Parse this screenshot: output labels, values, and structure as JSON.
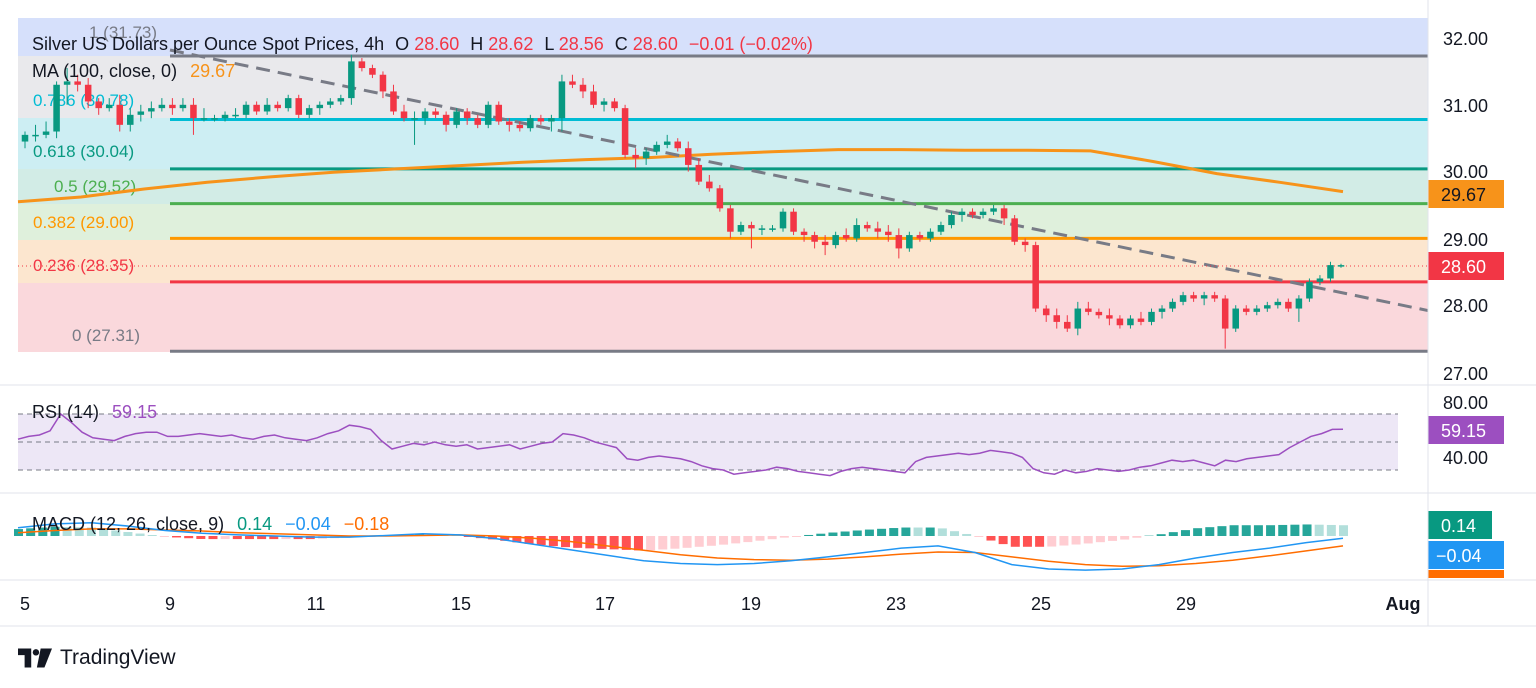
{
  "header": {
    "title": "Silver US Dollars per Ounce Spot Prices, 4h",
    "o_label": "O",
    "o": "28.60",
    "h_label": "H",
    "h": "28.62",
    "l_label": "L",
    "l": "28.56",
    "c_label": "C",
    "c": "28.60",
    "change": "−0.01 (−0.02%)"
  },
  "ma_legend": {
    "label": "MA (100, close, 0)",
    "value": "29.67"
  },
  "price_axis_labels": [
    "32.00",
    "31.00",
    "30.00",
    "29.00",
    "28.00",
    "27.00"
  ],
  "price_badges": {
    "ma": "29.67",
    "last": "28.60"
  },
  "fib_labels": {
    "l100": "1 (31.73)",
    "l786": "0.786 (30.78)",
    "l618": "0.618 (30.04)",
    "l500": "0.5 (29.52)",
    "l382": "0.382 (29.00)",
    "l236": "0.236 (28.35)",
    "l0": "0 (27.31)"
  },
  "rsi": {
    "legend_label": "RSI (14)",
    "legend_value": "59.15",
    "badge": "59.15",
    "axis_labels": [
      "80.00",
      "40.00"
    ]
  },
  "macd": {
    "legend_label": "MACD (12, 26, close, 9)",
    "v_hist": "0.14",
    "v_macd": "−0.04",
    "v_signal": "−0.18",
    "badge_hist": "0.14",
    "badge_macd": "−0.04"
  },
  "x_axis_labels": [
    "5",
    "9",
    "11",
    "15",
    "17",
    "19",
    "23",
    "25",
    "29",
    "Aug"
  ],
  "brand": {
    "name": "TradingView"
  },
  "colors": {
    "up": "#089981",
    "down": "#f23645",
    "ma": "#f7931a",
    "rsi": "#9c4fc0",
    "macd": "#2196f3",
    "signal": "#ff6d00"
  },
  "chart_data": {
    "type": "candlestick",
    "title": "Silver US Dollars per Ounce Spot Prices, 4h",
    "timeframe": "4h",
    "ylim": [
      26.8,
      32.3
    ],
    "x_ticks": [
      "5",
      "9",
      "11",
      "15",
      "17",
      "19",
      "23",
      "25",
      "29",
      "Aug"
    ],
    "fibonacci": [
      {
        "level": 1,
        "price": 31.73,
        "color": "#787b86"
      },
      {
        "level": 0.786,
        "price": 30.78,
        "color": "#00bcd4"
      },
      {
        "level": 0.618,
        "price": 30.04,
        "color": "#089981"
      },
      {
        "level": 0.5,
        "price": 29.52,
        "color": "#4caf50"
      },
      {
        "level": 0.382,
        "price": 29.0,
        "color": "#ff9800"
      },
      {
        "level": 0.236,
        "price": 28.35,
        "color": "#f23645"
      },
      {
        "level": 0,
        "price": 27.31,
        "color": "#787b86"
      }
    ],
    "trendline": {
      "from_bar": 0,
      "from_price": 31.8,
      "to_bar": 1.33,
      "to_price": 27.9
    },
    "ma100": [
      29.55,
      29.62,
      29.74,
      29.84,
      29.92,
      29.99,
      30.04,
      30.09,
      30.14,
      30.18,
      30.21,
      30.26,
      30.3,
      30.33,
      30.33,
      30.32,
      30.32,
      30.31,
      30.15,
      29.97,
      29.84,
      29.7
    ],
    "ohlc": [
      [
        30.45,
        30.6,
        30.35,
        30.55
      ],
      [
        30.55,
        30.7,
        30.45,
        30.55
      ],
      [
        30.55,
        30.75,
        30.5,
        30.6
      ],
      [
        30.6,
        31.35,
        30.5,
        31.3
      ],
      [
        31.3,
        31.55,
        31.0,
        31.35
      ],
      [
        31.35,
        31.45,
        31.2,
        31.3
      ],
      [
        31.3,
        31.4,
        30.95,
        31.05
      ],
      [
        31.05,
        31.1,
        30.85,
        30.95
      ],
      [
        30.95,
        31.1,
        30.9,
        31.0
      ],
      [
        31.0,
        31.15,
        30.6,
        30.7
      ],
      [
        30.7,
        30.95,
        30.6,
        30.85
      ],
      [
        30.85,
        31.0,
        30.75,
        30.9
      ],
      [
        30.9,
        31.05,
        30.8,
        30.95
      ],
      [
        30.95,
        31.1,
        30.9,
        31.0
      ],
      [
        31.0,
        31.1,
        30.85,
        30.95
      ],
      [
        30.95,
        31.1,
        30.9,
        31.0
      ],
      [
        31.0,
        31.1,
        30.55,
        30.8
      ],
      [
        30.8,
        30.95,
        30.75,
        30.8
      ],
      [
        30.8,
        30.85,
        30.75,
        30.8
      ],
      [
        30.8,
        30.9,
        30.75,
        30.85
      ],
      [
        30.85,
        30.95,
        30.8,
        30.85
      ],
      [
        30.85,
        31.05,
        30.8,
        31.0
      ],
      [
        31.0,
        31.05,
        30.85,
        30.9
      ],
      [
        30.9,
        31.1,
        30.85,
        31.0
      ],
      [
        31.0,
        31.05,
        30.9,
        30.95
      ],
      [
        30.95,
        31.15,
        30.9,
        31.1
      ],
      [
        31.1,
        31.15,
        30.8,
        30.85
      ],
      [
        30.85,
        31.0,
        30.8,
        30.95
      ],
      [
        30.95,
        31.05,
        30.85,
        31.0
      ],
      [
        31.0,
        31.1,
        30.95,
        31.05
      ],
      [
        31.05,
        31.15,
        31.0,
        31.1
      ],
      [
        31.1,
        31.75,
        31.0,
        31.65
      ],
      [
        31.65,
        31.7,
        31.5,
        31.55
      ],
      [
        31.55,
        31.6,
        31.4,
        31.45
      ],
      [
        31.45,
        31.5,
        31.1,
        31.2
      ],
      [
        31.2,
        31.3,
        30.85,
        30.9
      ],
      [
        30.9,
        31.0,
        30.75,
        30.8
      ],
      [
        30.8,
        30.9,
        30.4,
        30.8
      ],
      [
        30.8,
        30.95,
        30.7,
        30.9
      ],
      [
        30.9,
        30.95,
        30.8,
        30.85
      ],
      [
        30.85,
        30.9,
        30.6,
        30.7
      ],
      [
        30.7,
        30.95,
        30.65,
        30.9
      ],
      [
        30.9,
        30.95,
        30.7,
        30.8
      ],
      [
        30.8,
        30.85,
        30.65,
        30.7
      ],
      [
        30.7,
        31.05,
        30.65,
        31.0
      ],
      [
        31.0,
        31.05,
        30.7,
        30.75
      ],
      [
        30.75,
        30.8,
        30.6,
        30.7
      ],
      [
        30.7,
        30.75,
        30.6,
        30.65
      ],
      [
        30.65,
        30.85,
        30.6,
        30.8
      ],
      [
        30.8,
        30.85,
        30.7,
        30.75
      ],
      [
        30.75,
        30.85,
        30.6,
        30.8
      ],
      [
        30.8,
        31.45,
        30.6,
        31.35
      ],
      [
        31.35,
        31.45,
        31.25,
        31.3
      ],
      [
        31.3,
        31.4,
        31.1,
        31.2
      ],
      [
        31.2,
        31.3,
        30.95,
        31.0
      ],
      [
        31.0,
        31.1,
        30.9,
        31.05
      ],
      [
        31.05,
        31.1,
        30.9,
        30.95
      ],
      [
        30.95,
        31.0,
        30.2,
        30.25
      ],
      [
        30.25,
        30.35,
        30.05,
        30.2
      ],
      [
        30.2,
        30.35,
        30.1,
        30.3
      ],
      [
        30.3,
        30.45,
        30.25,
        30.4
      ],
      [
        30.4,
        30.55,
        30.35,
        30.45
      ],
      [
        30.45,
        30.5,
        30.3,
        30.35
      ],
      [
        30.35,
        30.45,
        30.0,
        30.1
      ],
      [
        30.1,
        30.2,
        29.8,
        29.85
      ],
      [
        29.85,
        29.95,
        29.7,
        29.75
      ],
      [
        29.75,
        29.8,
        29.4,
        29.45
      ],
      [
        29.45,
        29.5,
        29.0,
        29.1
      ],
      [
        29.1,
        29.25,
        29.05,
        29.2
      ],
      [
        29.2,
        29.25,
        28.85,
        29.15
      ],
      [
        29.15,
        29.2,
        29.05,
        29.15
      ],
      [
        29.15,
        29.2,
        29.1,
        29.15
      ],
      [
        29.15,
        29.45,
        29.1,
        29.4
      ],
      [
        29.4,
        29.45,
        29.05,
        29.1
      ],
      [
        29.1,
        29.15,
        28.95,
        29.05
      ],
      [
        29.05,
        29.1,
        28.85,
        28.95
      ],
      [
        28.95,
        29.05,
        28.75,
        28.9
      ],
      [
        28.9,
        29.1,
        28.85,
        29.05
      ],
      [
        29.05,
        29.15,
        28.95,
        29.0
      ],
      [
        29.0,
        29.3,
        28.95,
        29.2
      ],
      [
        29.2,
        29.25,
        29.1,
        29.15
      ],
      [
        29.15,
        29.25,
        29.0,
        29.1
      ],
      [
        29.1,
        29.2,
        28.95,
        29.05
      ],
      [
        29.05,
        29.15,
        28.7,
        28.85
      ],
      [
        28.85,
        29.1,
        28.8,
        29.05
      ],
      [
        29.05,
        29.1,
        28.95,
        29.0
      ],
      [
        29.0,
        29.15,
        28.95,
        29.1
      ],
      [
        29.1,
        29.25,
        29.05,
        29.2
      ],
      [
        29.2,
        29.4,
        29.15,
        29.35
      ],
      [
        29.35,
        29.45,
        29.25,
        29.4
      ],
      [
        29.4,
        29.45,
        29.3,
        29.35
      ],
      [
        29.35,
        29.45,
        29.3,
        29.4
      ],
      [
        29.4,
        29.5,
        29.35,
        29.45
      ],
      [
        29.45,
        29.5,
        29.2,
        29.3
      ],
      [
        29.3,
        29.35,
        28.9,
        28.95
      ],
      [
        28.95,
        29.0,
        28.8,
        28.9
      ],
      [
        28.9,
        28.95,
        27.9,
        27.95
      ],
      [
        27.95,
        28.0,
        27.75,
        27.85
      ],
      [
        27.85,
        27.95,
        27.65,
        27.75
      ],
      [
        27.75,
        27.85,
        27.6,
        27.65
      ],
      [
        27.65,
        28.05,
        27.55,
        27.95
      ],
      [
        27.95,
        28.05,
        27.85,
        27.9
      ],
      [
        27.9,
        27.95,
        27.8,
        27.85
      ],
      [
        27.85,
        27.95,
        27.7,
        27.8
      ],
      [
        27.8,
        27.85,
        27.65,
        27.7
      ],
      [
        27.7,
        27.85,
        27.65,
        27.8
      ],
      [
        27.8,
        27.9,
        27.7,
        27.75
      ],
      [
        27.75,
        27.95,
        27.7,
        27.9
      ],
      [
        27.9,
        28.0,
        27.8,
        27.95
      ],
      [
        27.95,
        28.1,
        27.9,
        28.05
      ],
      [
        28.05,
        28.2,
        28.0,
        28.15
      ],
      [
        28.15,
        28.2,
        28.05,
        28.1
      ],
      [
        28.1,
        28.2,
        28.0,
        28.15
      ],
      [
        28.15,
        28.2,
        28.05,
        28.1
      ],
      [
        28.1,
        28.15,
        27.35,
        27.65
      ],
      [
        27.65,
        28.0,
        27.6,
        27.95
      ],
      [
        27.95,
        28.0,
        27.85,
        27.9
      ],
      [
        27.9,
        28.0,
        27.85,
        27.95
      ],
      [
        27.95,
        28.05,
        27.9,
        28.0
      ],
      [
        28.0,
        28.1,
        27.95,
        28.05
      ],
      [
        28.05,
        28.1,
        27.9,
        27.95
      ],
      [
        27.95,
        28.15,
        27.75,
        28.1
      ],
      [
        28.1,
        28.4,
        28.05,
        28.35
      ],
      [
        28.35,
        28.45,
        28.3,
        28.4
      ],
      [
        28.4,
        28.65,
        28.35,
        28.6
      ],
      [
        28.6,
        28.62,
        28.56,
        28.6
      ]
    ],
    "rsi_values": [
      52,
      54,
      55,
      58,
      70,
      64,
      57,
      53,
      52,
      51,
      54,
      56,
      57,
      57,
      54,
      54,
      55,
      56,
      55,
      54,
      55,
      53,
      52,
      54,
      55,
      53,
      52,
      51,
      53,
      56,
      58,
      62,
      61,
      59,
      51,
      45,
      47,
      49,
      48,
      50,
      48,
      47,
      48,
      45,
      46,
      47,
      48,
      45,
      47,
      49,
      50,
      56,
      55,
      53,
      50,
      48,
      46,
      38,
      37,
      39,
      40,
      39,
      38,
      36,
      33,
      31,
      30,
      27,
      28,
      29,
      30,
      32,
      31,
      29,
      28,
      27,
      26,
      29,
      31,
      32,
      31,
      30,
      29,
      28,
      36,
      39,
      40,
      41,
      42,
      41,
      42,
      44,
      43,
      42,
      39,
      31,
      28,
      27,
      30,
      28,
      29,
      31,
      30,
      29,
      30,
      32,
      33,
      35,
      37,
      36,
      37,
      35,
      33,
      37,
      36,
      38,
      39,
      40,
      41,
      46,
      50,
      54,
      56,
      59,
      59.15
    ],
    "macd": {
      "hist": 0.14,
      "macd": -0.04,
      "signal": -0.18,
      "macd_line": [
        0.15,
        0.22,
        0.24,
        0.18,
        0.1,
        0.05,
        0.02,
        0.0,
        -0.02,
        -0.02,
        0.01,
        0.04,
        0.02,
        -0.05,
        -0.15,
        -0.25,
        -0.35,
        -0.45,
        -0.5,
        -0.52,
        -0.5,
        -0.45,
        -0.38,
        -0.3,
        -0.22,
        -0.18,
        -0.3,
        -0.52,
        -0.6,
        -0.62,
        -0.6,
        -0.52,
        -0.4,
        -0.3,
        -0.22,
        -0.12,
        -0.04
      ],
      "signal_line": [
        0.06,
        0.1,
        0.13,
        0.13,
        0.11,
        0.09,
        0.06,
        0.04,
        0.02,
        0.0,
        0.0,
        0.01,
        0.02,
        0.0,
        -0.04,
        -0.1,
        -0.18,
        -0.26,
        -0.34,
        -0.4,
        -0.43,
        -0.44,
        -0.42,
        -0.38,
        -0.33,
        -0.29,
        -0.3,
        -0.38,
        -0.46,
        -0.52,
        -0.55,
        -0.54,
        -0.5,
        -0.44,
        -0.36,
        -0.27,
        -0.18
      ]
    }
  }
}
